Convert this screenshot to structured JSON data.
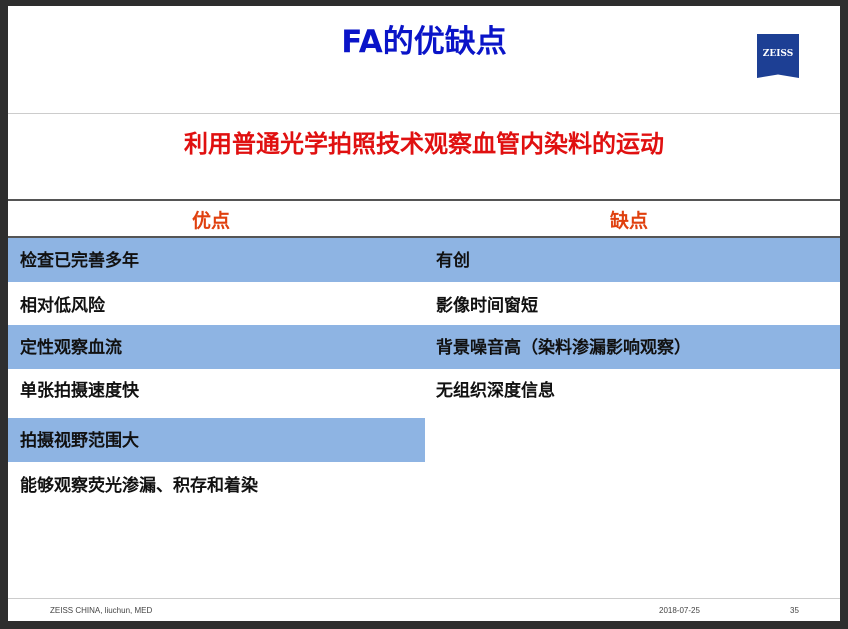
{
  "title": "FA的优缺点",
  "logo": "ZEISS",
  "subtitle": "利用普通光学拍照技术观察血管内染料的运动",
  "table": {
    "headers": {
      "pros": "优点",
      "cons": "缺点"
    },
    "pros": [
      "检查已完善多年",
      "相对低风险",
      "定性观察血流",
      "单张拍摄速度快",
      "拍摄视野范围大",
      "能够观察荧光渗漏、积存和着染"
    ],
    "cons": [
      "有创",
      "影像时间窗短",
      "背景噪音高（染料渗漏影响观察）",
      "无组织深度信息"
    ]
  },
  "footer": {
    "left": "ZEISS CHINA, liuchun, MED",
    "date": "2018-07-25",
    "page": "35"
  },
  "colors": {
    "title": "#0a14c8",
    "subtitle": "#e01010",
    "header": "#e0400e",
    "row_highlight": "#8eb4e3"
  }
}
